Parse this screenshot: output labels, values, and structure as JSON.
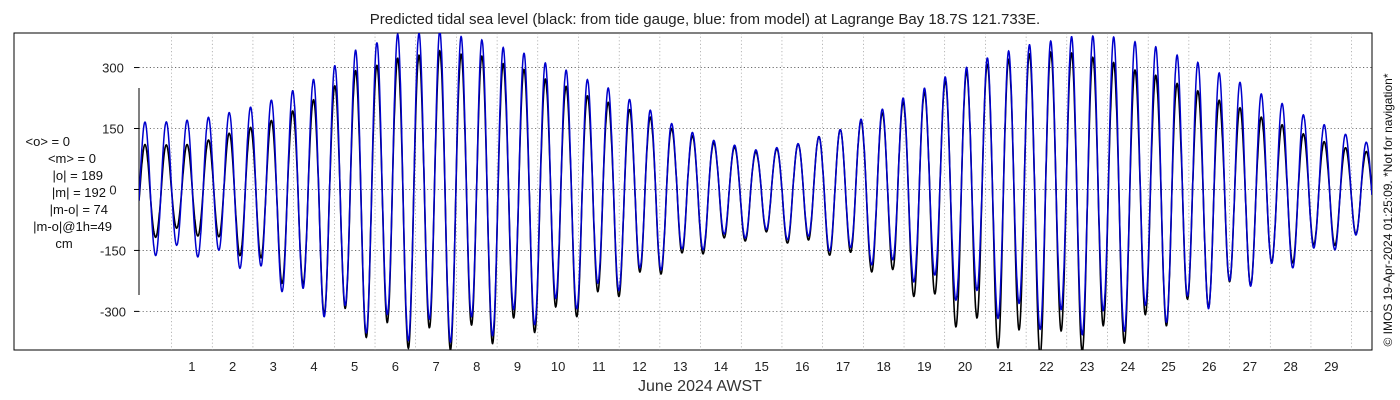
{
  "chart_data": {
    "type": "line",
    "title": "Predicted tidal sea level (black: from tide gauge, blue: from model) at Lagrange Bay 18.7S 121.733E.",
    "xlabel": "June 2024 AWST",
    "ylabel": "",
    "x_ticks": [
      "1",
      "2",
      "3",
      "4",
      "5",
      "6",
      "7",
      "8",
      "9",
      "10",
      "11",
      "12",
      "13",
      "14",
      "15",
      "16",
      "17",
      "18",
      "19",
      "20",
      "21",
      "22",
      "23",
      "24",
      "25",
      "26",
      "27",
      "28",
      "29"
    ],
    "y_ticks": [
      "300",
      "150",
      "0",
      "-150",
      "-300"
    ],
    "xlim_days": [
      0.2,
      30.5
    ],
    "ylim": [
      -395,
      385
    ],
    "grid": true,
    "stats_lines": [
      "<o> = 0",
      "<m> = 0",
      "|o| = 189",
      "|m| = 192",
      "|m-o| = 74",
      "|m-o|@1h=49",
      "cm"
    ],
    "side_note": "© IMOS 19-Apr-2024 01:25:09. *Not for navigation*",
    "series": [
      {
        "name": "black: from tide gauge",
        "color": "#000000",
        "days": [
          0.5,
          1.5,
          2.5,
          3.5,
          4.5,
          5.5,
          6.5,
          7.5,
          8.5,
          9.5,
          10.5,
          11.5,
          12.5,
          13.5,
          14.5,
          15.5,
          16.5,
          17.5,
          18.5,
          19.5,
          20.5,
          21.5,
          22.5,
          23.5,
          24.5,
          25.5,
          26.5,
          27.5,
          28.5,
          29.5,
          30.5
        ],
        "hi_amp": [
          120,
          110,
          140,
          170,
          220,
          290,
          320,
          340,
          330,
          300,
          260,
          220,
          190,
          140,
          110,
          90,
          115,
          150,
          190,
          240,
          290,
          320,
          340,
          330,
          300,
          270,
          230,
          190,
          150,
          110,
          90
        ],
        "lo_amp": [
          100,
          100,
          140,
          200,
          270,
          330,
          360,
          370,
          360,
          340,
          310,
          270,
          220,
          170,
          130,
          110,
          130,
          160,
          200,
          260,
          330,
          370,
          380,
          370,
          350,
          310,
          270,
          220,
          170,
          130,
          110
        ],
        "mid": [
          -10,
          0,
          0,
          0,
          0,
          0,
          0,
          0,
          0,
          0,
          0,
          0,
          0,
          0,
          0,
          0,
          0,
          0,
          0,
          0,
          0,
          0,
          0,
          0,
          0,
          0,
          0,
          0,
          0,
          0,
          0
        ]
      },
      {
        "name": "blue: from model",
        "color": "#0000cc",
        "days": [
          0.5,
          1.5,
          2.5,
          3.5,
          4.5,
          5.5,
          6.5,
          7.5,
          8.5,
          9.5,
          10.5,
          11.5,
          12.5,
          13.5,
          14.5,
          15.5,
          16.5,
          17.5,
          18.5,
          19.5,
          20.5,
          21.5,
          22.5,
          23.5,
          24.5,
          25.5,
          26.5,
          27.5,
          28.5,
          29.5,
          30.5
        ],
        "hi_amp": [
          165,
          170,
          190,
          220,
          270,
          340,
          380,
          390,
          370,
          340,
          300,
          260,
          210,
          150,
          115,
          95,
          115,
          150,
          200,
          250,
          300,
          340,
          365,
          380,
          370,
          340,
          300,
          250,
          200,
          150,
          110
        ],
        "lo_amp": [
          150,
          150,
          170,
          220,
          280,
          320,
          340,
          350,
          340,
          320,
          290,
          250,
          210,
          160,
          120,
          105,
          120,
          150,
          180,
          220,
          260,
          300,
          320,
          330,
          320,
          300,
          270,
          220,
          180,
          140,
          110
        ],
        "mid": [
          0,
          0,
          0,
          0,
          0,
          0,
          0,
          0,
          0,
          0,
          0,
          0,
          0,
          0,
          0,
          0,
          0,
          0,
          0,
          0,
          0,
          0,
          0,
          0,
          0,
          0,
          0,
          0,
          0,
          0,
          0
        ]
      }
    ],
    "semidiurnal_period_hours": 12.42,
    "diurnal_period_hours": 24.84
  }
}
